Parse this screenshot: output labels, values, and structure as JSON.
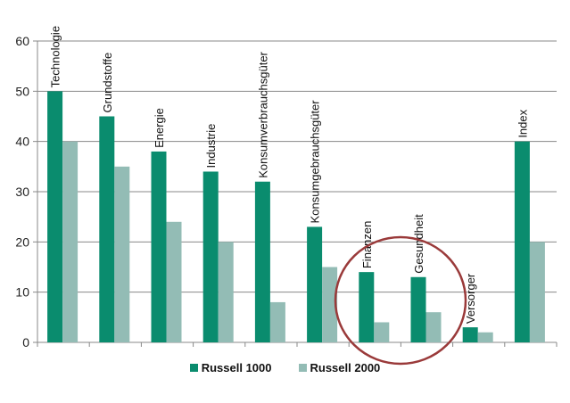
{
  "chart_data": {
    "type": "bar",
    "title": "",
    "xlabel": "",
    "ylabel": "",
    "ylim": [
      0,
      60
    ],
    "yticks": [
      0,
      10,
      20,
      30,
      40,
      50,
      60
    ],
    "grid": true,
    "legend_position": "bottom",
    "categories": [
      "Technologie",
      "Grundstoffe",
      "Energie",
      "Industrie",
      "Konsumverbrauchsgüter",
      "Konsumgebrauchsgüter",
      "Finanzen",
      "Gesundheit",
      "Versorger",
      "Index"
    ],
    "series": [
      {
        "name": "Russell 1000",
        "color": "#0a8c6e",
        "values": [
          50,
          45,
          38,
          34,
          32,
          23,
          14,
          13,
          3,
          40
        ]
      },
      {
        "name": "Russell 2000",
        "color": "#93bcb5",
        "values": [
          40,
          35,
          24,
          20,
          8,
          15,
          4,
          6,
          2,
          20
        ]
      }
    ],
    "annotations": [
      {
        "type": "circle",
        "color": "#9a3a3a",
        "encloses": [
          "Finanzen",
          "Gesundheit"
        ]
      }
    ]
  },
  "legend": {
    "items": [
      {
        "label": "Russell 1000",
        "color": "#0a8c6e"
      },
      {
        "label": "Russell 2000",
        "color": "#93bcb5"
      }
    ]
  }
}
